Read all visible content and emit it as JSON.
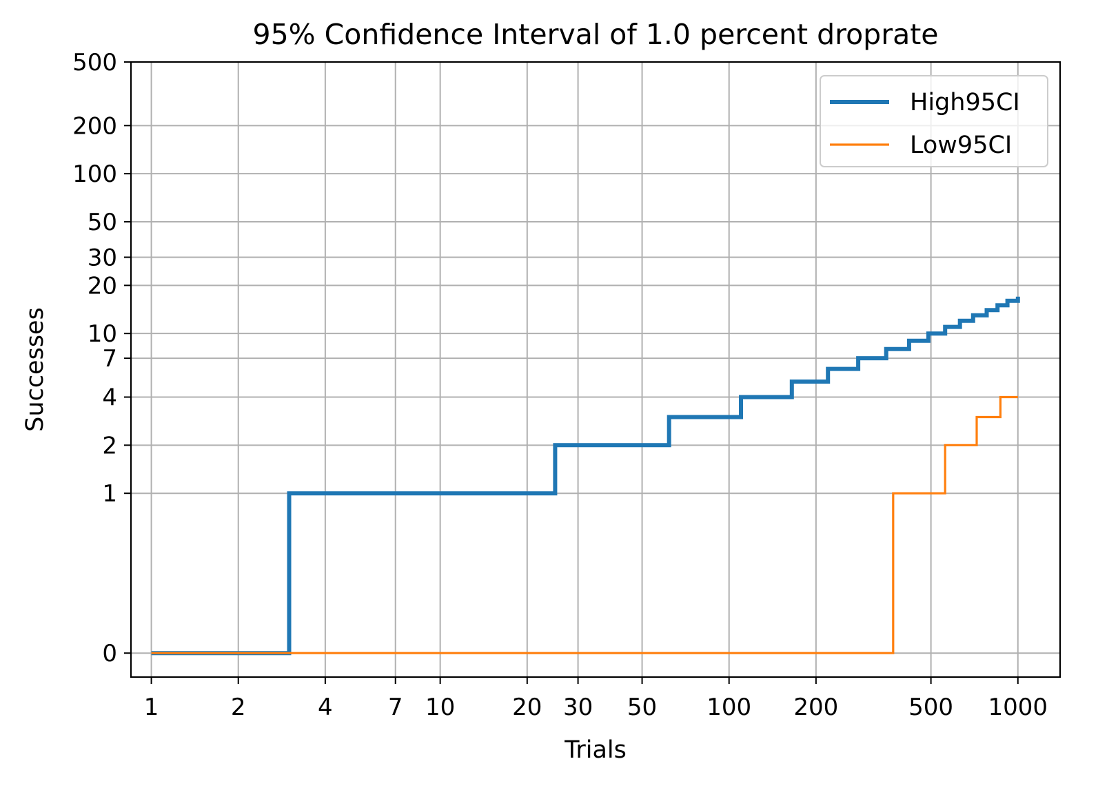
{
  "chart_data": {
    "type": "line",
    "step": "post",
    "title": "95% Confidence Interval of 1.0 percent droprate",
    "xlabel": "Trials",
    "ylabel": "Successes",
    "xscale": "log",
    "yscale": "symlog",
    "xlim": [
      0.85,
      1400
    ],
    "ylim": [
      -0.15,
      500
    ],
    "xticks": [
      {
        "value": 1,
        "label": "1"
      },
      {
        "value": 2,
        "label": "2"
      },
      {
        "value": 4,
        "label": "4"
      },
      {
        "value": 7,
        "label": "7"
      },
      {
        "value": 10,
        "label": "10"
      },
      {
        "value": 20,
        "label": "20"
      },
      {
        "value": 30,
        "label": "30"
      },
      {
        "value": 50,
        "label": "50"
      },
      {
        "value": 100,
        "label": "100"
      },
      {
        "value": 200,
        "label": "200"
      },
      {
        "value": 500,
        "label": "500"
      },
      {
        "value": 1000,
        "label": "1000"
      }
    ],
    "yticks": [
      {
        "value": 0,
        "label": "0"
      },
      {
        "value": 1,
        "label": "1"
      },
      {
        "value": 2,
        "label": "2"
      },
      {
        "value": 4,
        "label": "4"
      },
      {
        "value": 7,
        "label": "7"
      },
      {
        "value": 10,
        "label": "10"
      },
      {
        "value": 20,
        "label": "20"
      },
      {
        "value": 30,
        "label": "30"
      },
      {
        "value": 50,
        "label": "50"
      },
      {
        "value": 100,
        "label": "100"
      },
      {
        "value": 200,
        "label": "200"
      },
      {
        "value": 500,
        "label": "500"
      }
    ],
    "grid": true,
    "legend": "top-right",
    "series": [
      {
        "name": "High95CI",
        "color": "#1f77b4",
        "linewidth": "thick",
        "points": [
          [
            1,
            0
          ],
          [
            3,
            0
          ],
          [
            3,
            1
          ],
          [
            25,
            1
          ],
          [
            25,
            2
          ],
          [
            62,
            2
          ],
          [
            62,
            3
          ],
          [
            110,
            3
          ],
          [
            110,
            4
          ],
          [
            165,
            4
          ],
          [
            165,
            5
          ],
          [
            220,
            5
          ],
          [
            220,
            6
          ],
          [
            280,
            6
          ],
          [
            280,
            7
          ],
          [
            350,
            7
          ],
          [
            350,
            8
          ],
          [
            420,
            8
          ],
          [
            420,
            9
          ],
          [
            490,
            9
          ],
          [
            490,
            10
          ],
          [
            560,
            10
          ],
          [
            560,
            11
          ],
          [
            630,
            11
          ],
          [
            630,
            12
          ],
          [
            700,
            12
          ],
          [
            700,
            13
          ],
          [
            780,
            13
          ],
          [
            780,
            14
          ],
          [
            850,
            14
          ],
          [
            850,
            15
          ],
          [
            920,
            15
          ],
          [
            920,
            16
          ],
          [
            1000,
            16
          ],
          [
            1000,
            17
          ]
        ]
      },
      {
        "name": "Low95CI",
        "color": "#ff7f0e",
        "linewidth": "thin",
        "points": [
          [
            1,
            0
          ],
          [
            370,
            0
          ],
          [
            370,
            1
          ],
          [
            560,
            1
          ],
          [
            560,
            2
          ],
          [
            720,
            2
          ],
          [
            720,
            3
          ],
          [
            870,
            3
          ],
          [
            870,
            4
          ],
          [
            1000,
            4
          ]
        ]
      }
    ]
  }
}
